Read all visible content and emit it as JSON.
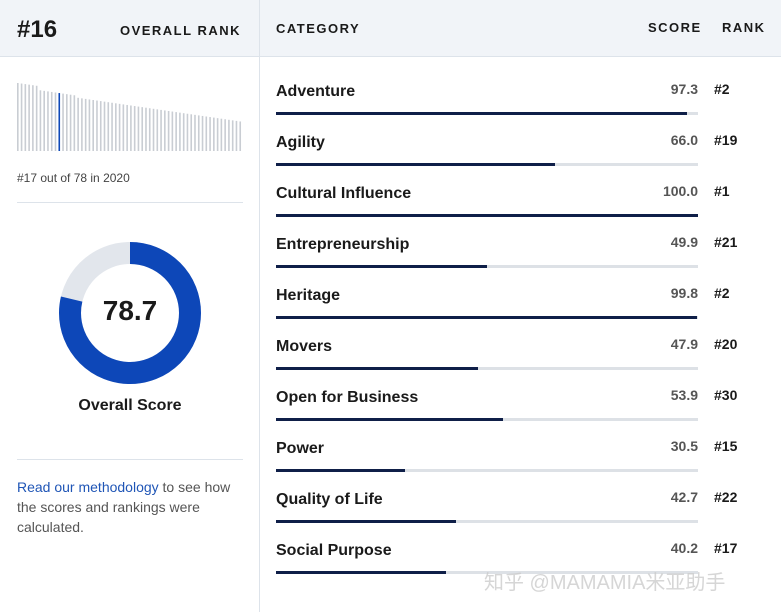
{
  "summary": {
    "rank": "#16",
    "overall_rank_label": "OVERALL RANK",
    "previous": "#17 out of 78 in 2020",
    "overall_score_value": "78.7",
    "overall_score_fraction": 0.787,
    "overall_score_label": "Overall Score"
  },
  "table_header": {
    "category": "CATEGORY",
    "score": "SCORE",
    "rank": "RANK"
  },
  "categories": [
    {
      "name": "Adventure",
      "score": "97.3",
      "value": 97.3,
      "rank": "#2"
    },
    {
      "name": "Agility",
      "score": "66.0",
      "value": 66.0,
      "rank": "#19"
    },
    {
      "name": "Cultural Influence",
      "score": "100.0",
      "value": 100.0,
      "rank": "#1"
    },
    {
      "name": "Entrepreneurship",
      "score": "49.9",
      "value": 49.9,
      "rank": "#21"
    },
    {
      "name": "Heritage",
      "score": "99.8",
      "value": 99.8,
      "rank": "#2"
    },
    {
      "name": "Movers",
      "score": "47.9",
      "value": 47.9,
      "rank": "#20"
    },
    {
      "name": "Open for Business",
      "score": "53.9",
      "value": 53.9,
      "rank": "#30"
    },
    {
      "name": "Power",
      "score": "30.5",
      "value": 30.5,
      "rank": "#15"
    },
    {
      "name": "Quality of Life",
      "score": "42.7",
      "value": 42.7,
      "rank": "#22"
    },
    {
      "name": "Social Purpose",
      "score": "40.2",
      "value": 40.2,
      "rank": "#17"
    }
  ],
  "methodology": {
    "link_text": "Read our methodology",
    "rest_text": " to see how the scores and rankings were calculated."
  },
  "watermark": "知乎 @MAMAMIA米亚助手",
  "colors": {
    "bar_fill": "#0f1f48",
    "donut_fill": "#0d47b8",
    "donut_track": "#e2e6ec",
    "highlight_bar": "#0d47b8",
    "header_bg": "#f1f4f8"
  }
}
